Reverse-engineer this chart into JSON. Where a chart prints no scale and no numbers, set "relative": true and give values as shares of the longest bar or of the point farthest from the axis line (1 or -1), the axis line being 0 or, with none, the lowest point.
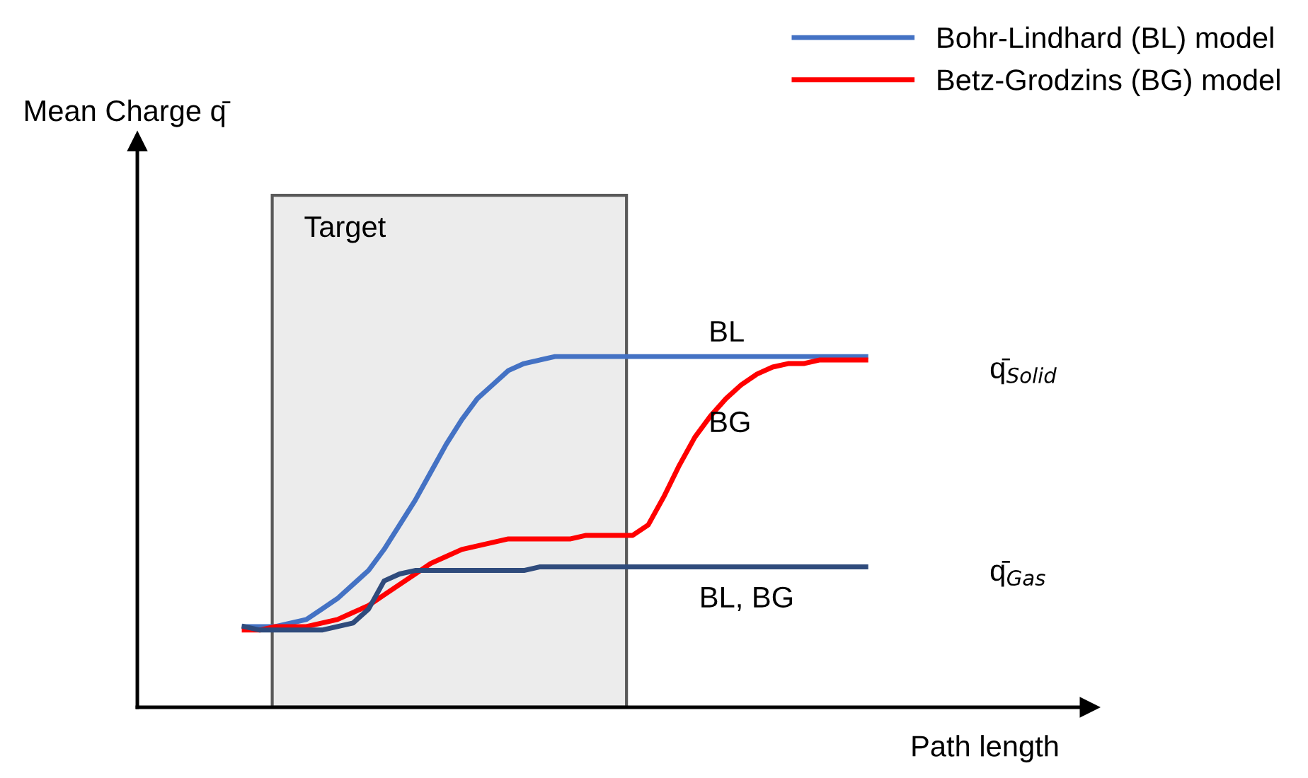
{
  "chart_data": {
    "type": "line",
    "relative": true,
    "xlabel": "Path length",
    "categories": [
      null,
      null,
      null,
      null,
      null,
      null,
      null,
      null,
      null,
      null,
      null,
      null,
      null,
      null,
      null,
      null,
      null,
      null,
      null,
      null,
      null,
      null,
      null,
      null,
      null,
      null,
      null,
      null,
      null,
      null,
      null,
      null,
      null,
      null,
      null,
      null,
      null,
      null,
      null,
      null,
      null
    ],
    "series": [
      {
        "name": "Bohr-Lindhard (BL) model",
        "color": "#4472c4",
        "values": [
          0.23,
          0.23,
          0.23,
          0.24,
          0.25,
          0.28,
          0.31,
          0.35,
          0.39,
          0.45,
          0.52,
          0.59,
          0.67,
          0.75,
          0.82,
          0.88,
          0.92,
          0.96,
          0.98,
          0.99,
          1,
          1,
          1,
          1,
          1,
          1,
          1,
          1,
          1,
          1,
          1,
          1,
          1,
          1,
          1,
          1,
          1,
          1,
          1,
          1,
          1
        ]
      },
      {
        "name": "Betz-Grodzins (BG) model",
        "color": "#ff0000",
        "values": [
          0.22,
          0.22,
          0.23,
          0.23,
          0.23,
          0.24,
          0.25,
          0.27,
          0.29,
          0.32,
          0.35,
          0.38,
          0.41,
          0.43,
          0.45,
          0.46,
          0.47,
          0.48,
          0.48,
          0.48,
          0.48,
          0.48,
          0.49,
          0.49,
          0.49,
          0.49,
          0.52,
          0.6,
          0.69,
          0.77,
          0.83,
          0.88,
          0.92,
          0.95,
          0.97,
          0.98,
          0.98,
          0.99,
          0.99,
          0.99,
          0.99
        ]
      },
      {
        "color": "#2f4b7c",
        "values": [
          0.23,
          0.22,
          0.22,
          0.22,
          0.22,
          0.22,
          0.23,
          0.24,
          0.28,
          0.36,
          0.38,
          0.39,
          0.39,
          0.39,
          0.39,
          0.39,
          0.39,
          0.39,
          0.39,
          0.4,
          0.4,
          0.4,
          0.4,
          0.4,
          0.4,
          0.4,
          0.4,
          0.4,
          0.4,
          0.4,
          0.4,
          0.4,
          0.4,
          0.4,
          0.4,
          0.4,
          0.4,
          0.4,
          0.4,
          0.4,
          0.4
        ]
      }
    ],
    "annotations": [
      "Mean Charge q̄",
      "Target",
      "BL",
      "BG",
      "BL, BG",
      "q̄$_{Solid}$",
      "q̄$_{Gas}$"
    ],
    "legend": "top right",
    "marker": "none",
    "line_style": "solid"
  }
}
